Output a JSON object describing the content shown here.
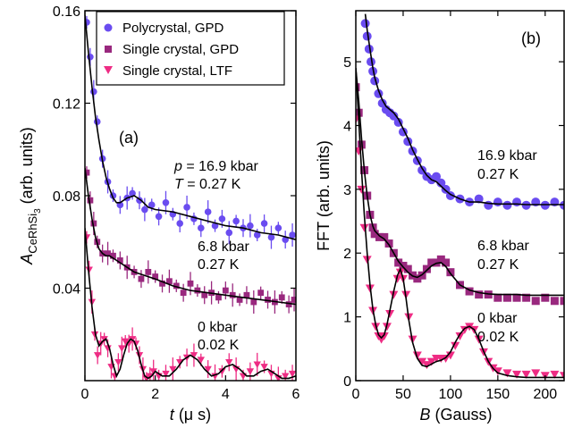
{
  "chart_data": [
    {
      "type": "scatter",
      "panel": "(a)",
      "xlabel_var": "t",
      "xlabel_unit": " (μ s)",
      "ylabel_var": "A",
      "ylabel_sub": "CeRhSi",
      "ylabel_sub2": "3",
      "ylabel_unit": " (arb. units)",
      "xlim": [
        0,
        6
      ],
      "ylim": [
        0,
        0.16
      ],
      "xticks": [
        "0",
        "2",
        "4",
        "6"
      ],
      "yticks": [
        "0.04",
        "0.08",
        "0.12",
        "0.16"
      ],
      "legend": [
        "Polycrystal, GPD",
        "Single crystal, GPD",
        "Single crystal, LTF"
      ],
      "annotations": [
        {
          "line1_var": "p",
          "line1": " = 16.9 kbar",
          "line2_var": "T",
          "line2": " = 0.27 K"
        },
        {
          "line1": "6.8 kbar",
          "line2": "0.27 K"
        },
        {
          "line1": "0 kbar",
          "line2": "0.02 K"
        }
      ],
      "series": [
        {
          "name": "Polycrystal, GPD",
          "color": "#6a4cf0",
          "marker": "circle",
          "x": [
            0.05,
            0.15,
            0.25,
            0.35,
            0.5,
            0.65,
            0.8,
            1.0,
            1.2,
            1.35,
            1.55,
            1.7,
            1.9,
            2.1,
            2.3,
            2.5,
            2.7,
            2.9,
            3.1,
            3.3,
            3.5,
            3.7,
            3.9,
            4.1,
            4.3,
            4.5,
            4.7,
            4.9,
            5.1,
            5.3,
            5.5,
            5.7,
            5.9
          ],
          "y": [
            0.155,
            0.14,
            0.125,
            0.112,
            0.096,
            0.086,
            0.08,
            0.076,
            0.079,
            0.081,
            0.078,
            0.074,
            0.076,
            0.071,
            0.077,
            0.072,
            0.068,
            0.075,
            0.07,
            0.066,
            0.073,
            0.067,
            0.07,
            0.064,
            0.069,
            0.066,
            0.067,
            0.063,
            0.068,
            0.062,
            0.066,
            0.061,
            0.063
          ]
        },
        {
          "name": "Single crystal, GPD",
          "color": "#99287e",
          "marker": "square",
          "x": [
            0.05,
            0.15,
            0.25,
            0.35,
            0.5,
            0.65,
            0.8,
            1.0,
            1.2,
            1.4,
            1.6,
            1.8,
            2.0,
            2.2,
            2.4,
            2.6,
            2.8,
            3.0,
            3.2,
            3.4,
            3.6,
            3.8,
            4.0,
            4.2,
            4.4,
            4.6,
            4.8,
            5.0,
            5.2,
            5.4,
            5.6,
            5.8,
            5.95
          ],
          "y": [
            0.09,
            0.078,
            0.068,
            0.06,
            0.055,
            0.055,
            0.054,
            0.052,
            0.049,
            0.047,
            0.044,
            0.047,
            0.045,
            0.042,
            0.043,
            0.041,
            0.038,
            0.042,
            0.039,
            0.037,
            0.038,
            0.036,
            0.039,
            0.037,
            0.035,
            0.037,
            0.034,
            0.038,
            0.035,
            0.034,
            0.036,
            0.033,
            0.035
          ]
        },
        {
          "name": "Single crystal, LTF",
          "color": "#ee2c84",
          "marker": "triangle",
          "x": [
            0.05,
            0.12,
            0.2,
            0.28,
            0.36,
            0.45,
            0.55,
            0.65,
            0.75,
            0.85,
            0.95,
            1.05,
            1.15,
            1.25,
            1.35,
            1.45,
            1.55,
            1.65,
            1.75,
            1.85,
            1.95,
            2.1,
            2.3,
            2.5,
            2.7,
            2.9,
            3.1,
            3.3,
            3.5,
            3.7,
            3.9,
            4.1,
            4.3,
            4.5,
            4.7,
            4.9,
            5.1,
            5.3,
            5.5,
            5.7,
            5.9
          ],
          "y": [
            0.062,
            0.048,
            0.034,
            0.02,
            0.011,
            0.016,
            0.018,
            0.014,
            0.006,
            0.002,
            0.008,
            0.014,
            0.017,
            0.016,
            0.018,
            0.016,
            0.011,
            0.005,
            0.001,
            0.002,
            0.004,
            0.002,
            0.003,
            0.005,
            0.008,
            0.01,
            0.011,
            0.009,
            0.005,
            0.002,
            0.004,
            0.008,
            0.005,
            0.002,
            0.004,
            0.007,
            0.006,
            0.003,
            0.001,
            0.002,
            0.003
          ]
        }
      ],
      "fits": [
        {
          "x": [
            0,
            0.1,
            0.2,
            0.3,
            0.4,
            0.5,
            0.6,
            0.7,
            0.8,
            0.9,
            1.0,
            1.2,
            1.4,
            1.6,
            1.8,
            2.0,
            2.5,
            3.0,
            3.5,
            4.0,
            4.5,
            5.0,
            5.5,
            6.0
          ],
          "y": [
            0.158,
            0.142,
            0.127,
            0.114,
            0.104,
            0.095,
            0.088,
            0.083,
            0.079,
            0.077,
            0.077,
            0.079,
            0.08,
            0.078,
            0.075,
            0.074,
            0.073,
            0.071,
            0.069,
            0.067,
            0.066,
            0.064,
            0.063,
            0.061
          ]
        },
        {
          "x": [
            0,
            0.1,
            0.2,
            0.3,
            0.4,
            0.5,
            0.6,
            0.7,
            0.8,
            1.0,
            1.2,
            1.4,
            1.6,
            1.8,
            2.0,
            2.5,
            3.0,
            3.5,
            4.0,
            4.5,
            5.0,
            5.5,
            6.0
          ],
          "y": [
            0.092,
            0.08,
            0.07,
            0.062,
            0.057,
            0.055,
            0.054,
            0.054,
            0.053,
            0.051,
            0.049,
            0.047,
            0.046,
            0.045,
            0.044,
            0.041,
            0.039,
            0.038,
            0.037,
            0.036,
            0.035,
            0.034,
            0.033
          ]
        },
        {
          "x": [
            0,
            0.1,
            0.2,
            0.3,
            0.4,
            0.5,
            0.6,
            0.7,
            0.8,
            0.9,
            1.0,
            1.1,
            1.2,
            1.3,
            1.4,
            1.5,
            1.6,
            1.7,
            1.8,
            1.9,
            2.0,
            2.2,
            2.4,
            2.6,
            2.8,
            3.0,
            3.2,
            3.4,
            3.6,
            3.8,
            4.0,
            4.2,
            4.4,
            4.6,
            4.8,
            5.0,
            5.2,
            5.4,
            5.6,
            5.8,
            6.0
          ],
          "y": [
            0.066,
            0.048,
            0.032,
            0.02,
            0.015,
            0.017,
            0.018,
            0.014,
            0.007,
            0.002,
            0.005,
            0.011,
            0.016,
            0.018,
            0.017,
            0.013,
            0.007,
            0.002,
            0.001,
            0.002,
            0.004,
            0.002,
            0.002,
            0.005,
            0.009,
            0.011,
            0.009,
            0.005,
            0.002,
            0.003,
            0.006,
            0.007,
            0.005,
            0.002,
            0.002,
            0.004,
            0.005,
            0.003,
            0.001,
            0.001,
            0.002
          ]
        }
      ]
    },
    {
      "type": "line",
      "panel": "(b)",
      "xlabel_var": "B",
      "xlabel_unit": " (Gauss)",
      "ylabel": "FFT (arb. units)",
      "xlim": [
        0,
        220
      ],
      "ylim": [
        0,
        5.8
      ],
      "xticks": [
        "0",
        "50",
        "100",
        "150",
        "200"
      ],
      "yticks": [
        "0",
        "1",
        "2",
        "3",
        "4",
        "5"
      ],
      "annotations": [
        {
          "line1": "16.9 kbar",
          "line2": "0.27 K"
        },
        {
          "line1": "6.8 kbar",
          "line2": "0.27 K"
        },
        {
          "line1": "0 kbar",
          "line2": "0.02 K"
        }
      ],
      "series": [
        {
          "name": "Polycrystal, GPD",
          "color": "#6a4cf0",
          "marker": "circle",
          "x": [
            10,
            12,
            14,
            16,
            18,
            20,
            24,
            28,
            32,
            36,
            40,
            45,
            50,
            55,
            60,
            65,
            70,
            75,
            80,
            85,
            90,
            95,
            100,
            110,
            120,
            130,
            140,
            150,
            160,
            170,
            180,
            190,
            200,
            210,
            220
          ],
          "y": [
            5.6,
            5.4,
            5.2,
            5.0,
            4.85,
            4.7,
            4.5,
            4.35,
            4.25,
            4.2,
            4.15,
            4.05,
            3.9,
            3.75,
            3.6,
            3.45,
            3.3,
            3.2,
            3.15,
            3.2,
            3.1,
            3.0,
            2.9,
            2.85,
            2.8,
            2.85,
            2.75,
            2.8,
            2.75,
            2.8,
            2.75,
            2.8,
            2.75,
            2.8,
            2.75
          ]
        },
        {
          "name": "Single crystal, GPD",
          "color": "#99287e",
          "marker": "square",
          "x": [
            0,
            3,
            6,
            9,
            12,
            15,
            18,
            20,
            25,
            30,
            35,
            40,
            45,
            50,
            55,
            60,
            65,
            70,
            75,
            80,
            85,
            90,
            95,
            100,
            110,
            120,
            130,
            140,
            150,
            160,
            170,
            180,
            190,
            200,
            210,
            220
          ],
          "y": [
            4.6,
            4.2,
            3.7,
            3.3,
            2.9,
            2.6,
            2.4,
            2.3,
            2.25,
            2.25,
            2.15,
            2.0,
            1.85,
            1.8,
            1.75,
            1.65,
            1.6,
            1.65,
            1.75,
            1.85,
            1.85,
            1.9,
            1.85,
            1.7,
            1.5,
            1.4,
            1.35,
            1.35,
            1.3,
            1.3,
            1.3,
            1.3,
            1.25,
            1.3,
            1.25,
            1.25
          ]
        },
        {
          "name": "Single crystal, LTF",
          "color": "#ee2c84",
          "marker": "triangle",
          "x": [
            0,
            3,
            6,
            9,
            12,
            15,
            18,
            21,
            24,
            27,
            30,
            33,
            36,
            40,
            44,
            47,
            50,
            53,
            56,
            60,
            65,
            70,
            75,
            80,
            85,
            90,
            95,
            100,
            105,
            110,
            115,
            120,
            125,
            130,
            135,
            140,
            145,
            150,
            160,
            170,
            180,
            190,
            200,
            210,
            220
          ],
          "y": [
            4.1,
            3.6,
            3.0,
            2.4,
            1.9,
            1.45,
            1.1,
            0.85,
            0.7,
            0.65,
            0.7,
            0.85,
            1.05,
            1.35,
            1.6,
            1.7,
            1.6,
            1.35,
            1.0,
            0.65,
            0.4,
            0.3,
            0.25,
            0.3,
            0.35,
            0.35,
            0.35,
            0.4,
            0.55,
            0.7,
            0.8,
            0.85,
            0.8,
            0.65,
            0.45,
            0.3,
            0.2,
            0.15,
            0.12,
            0.1,
            0.1,
            0.12,
            0.08,
            0.1,
            0.08
          ]
        }
      ],
      "fits": [
        {
          "x": [
            10,
            12,
            14,
            16,
            18,
            20,
            24,
            28,
            32,
            36,
            40,
            45,
            50,
            55,
            60,
            65,
            70,
            75,
            80,
            85,
            90,
            95,
            100,
            110,
            120,
            130,
            140,
            150,
            160,
            170,
            180,
            190,
            200,
            210,
            220
          ],
          "y": [
            5.75,
            5.5,
            5.3,
            5.1,
            4.9,
            4.75,
            4.55,
            4.4,
            4.3,
            4.25,
            4.2,
            4.1,
            3.95,
            3.8,
            3.62,
            3.47,
            3.33,
            3.22,
            3.15,
            3.12,
            3.05,
            2.98,
            2.92,
            2.85,
            2.8,
            2.8,
            2.78,
            2.77,
            2.77,
            2.77,
            2.76,
            2.76,
            2.76,
            2.76,
            2.76
          ]
        },
        {
          "x": [
            0,
            3,
            6,
            9,
            12,
            15,
            18,
            20,
            25,
            30,
            35,
            40,
            45,
            50,
            55,
            60,
            65,
            70,
            75,
            80,
            85,
            90,
            95,
            100,
            110,
            120,
            130,
            140,
            150,
            160,
            170,
            180,
            190,
            200,
            210,
            220
          ],
          "y": [
            4.9,
            4.4,
            3.8,
            3.3,
            2.9,
            2.6,
            2.42,
            2.35,
            2.27,
            2.22,
            2.13,
            2.0,
            1.87,
            1.78,
            1.7,
            1.64,
            1.62,
            1.66,
            1.73,
            1.8,
            1.84,
            1.85,
            1.79,
            1.68,
            1.5,
            1.42,
            1.38,
            1.36,
            1.35,
            1.35,
            1.35,
            1.34,
            1.34,
            1.34,
            1.34,
            1.34
          ]
        },
        {
          "x": [
            0,
            3,
            6,
            9,
            12,
            15,
            18,
            21,
            24,
            27,
            30,
            33,
            36,
            40,
            44,
            47,
            50,
            53,
            56,
            60,
            65,
            70,
            75,
            80,
            85,
            90,
            95,
            100,
            105,
            110,
            115,
            120,
            125,
            130,
            135,
            140,
            145,
            150,
            160,
            170,
            180,
            190,
            200,
            210,
            220
          ],
          "y": [
            4.9,
            4.1,
            3.3,
            2.6,
            2.0,
            1.5,
            1.12,
            0.88,
            0.72,
            0.67,
            0.72,
            0.88,
            1.1,
            1.4,
            1.65,
            1.75,
            1.6,
            1.3,
            0.95,
            0.6,
            0.35,
            0.24,
            0.22,
            0.26,
            0.3,
            0.32,
            0.36,
            0.45,
            0.6,
            0.73,
            0.82,
            0.85,
            0.8,
            0.65,
            0.46,
            0.3,
            0.19,
            0.12,
            0.08,
            0.06,
            0.05,
            0.05,
            0.05,
            0.05,
            0.05
          ]
        }
      ]
    }
  ]
}
